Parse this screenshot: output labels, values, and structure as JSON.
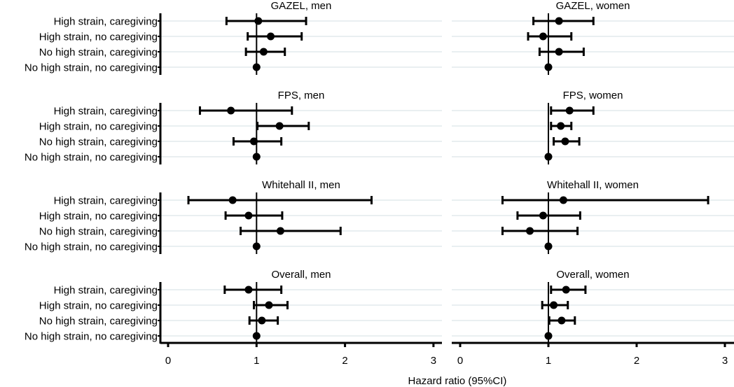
{
  "chart_data": {
    "type": "forest",
    "xlabel": "Hazard ratio (95%CI)",
    "xlim": [
      0,
      3
    ],
    "xticks": [
      "0",
      "1",
      "2",
      "3"
    ],
    "reference_line": 1,
    "categories": [
      "High strain, caregiving",
      "High strain, no caregiving",
      "No high strain, caregiving",
      "No high strain, no caregiving"
    ],
    "colors": {
      "marks": "#000000",
      "grid": "#e9eff1"
    },
    "panels": [
      {
        "title": "GAZEL, men",
        "hr": [
          1.02,
          1.16,
          1.08,
          1.0
        ],
        "lower": [
          0.66,
          0.9,
          0.88,
          1.0
        ],
        "upper": [
          1.56,
          1.51,
          1.32,
          1.0
        ]
      },
      {
        "title": "GAZEL, women",
        "hr": [
          1.12,
          0.94,
          1.12,
          1.0
        ],
        "lower": [
          0.83,
          0.77,
          0.9,
          1.0
        ],
        "upper": [
          1.51,
          1.26,
          1.4,
          1.0
        ]
      },
      {
        "title": "FPS, men",
        "hr": [
          0.71,
          1.26,
          0.97,
          1.0
        ],
        "lower": [
          0.36,
          1.01,
          0.74,
          1.0
        ],
        "upper": [
          1.4,
          1.59,
          1.28,
          1.0
        ]
      },
      {
        "title": "FPS, women",
        "hr": [
          1.24,
          1.14,
          1.19,
          1.0
        ],
        "lower": [
          1.03,
          1.03,
          1.06,
          1.0
        ],
        "upper": [
          1.51,
          1.26,
          1.35,
          1.0
        ]
      },
      {
        "title": "Whitehall II, men",
        "hr": [
          0.73,
          0.91,
          1.27,
          1.0
        ],
        "lower": [
          0.23,
          0.65,
          0.82,
          1.0
        ],
        "upper": [
          2.3,
          1.29,
          1.95,
          1.0
        ]
      },
      {
        "title": "Whitehall II, women",
        "hr": [
          1.17,
          0.94,
          0.79,
          1.0
        ],
        "lower": [
          0.48,
          0.65,
          0.48,
          1.0
        ],
        "upper": [
          2.81,
          1.36,
          1.33,
          1.0
        ]
      },
      {
        "title": "Overall, men",
        "hr": [
          0.91,
          1.14,
          1.06,
          1.0
        ],
        "lower": [
          0.64,
          0.97,
          0.92,
          1.0
        ],
        "upper": [
          1.28,
          1.35,
          1.24,
          1.0
        ]
      },
      {
        "title": "Overall, women",
        "hr": [
          1.2,
          1.06,
          1.15,
          1.0
        ],
        "lower": [
          1.03,
          0.93,
          1.01,
          1.0
        ],
        "upper": [
          1.42,
          1.22,
          1.3,
          1.0
        ]
      }
    ]
  }
}
